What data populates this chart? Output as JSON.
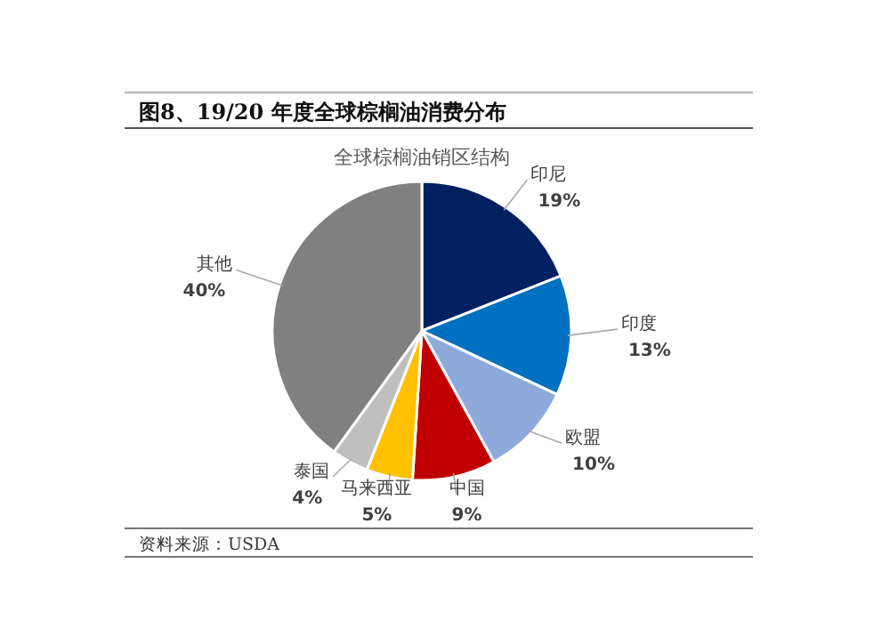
{
  "chart_data": {
    "type": "pie",
    "title": "图8、19/20 年度全球棕榈油消费分布",
    "subtitle": "全球棕榈油销区结构",
    "categories": [
      "印尼",
      "印度",
      "欧盟",
      "中国",
      "马来西亚",
      "泰国",
      "其他"
    ],
    "values": [
      19,
      13,
      10,
      9,
      5,
      4,
      40
    ],
    "colors": [
      "#002060",
      "#0070c0",
      "#8eaadb",
      "#c00000",
      "#ffc000",
      "#bfbfbf",
      "#808080"
    ],
    "value_labels": [
      "19%",
      "13%",
      "10%",
      "9%",
      "5%",
      "4%",
      "40%"
    ],
    "annotations": [
      "资料来源：USDA"
    ]
  }
}
